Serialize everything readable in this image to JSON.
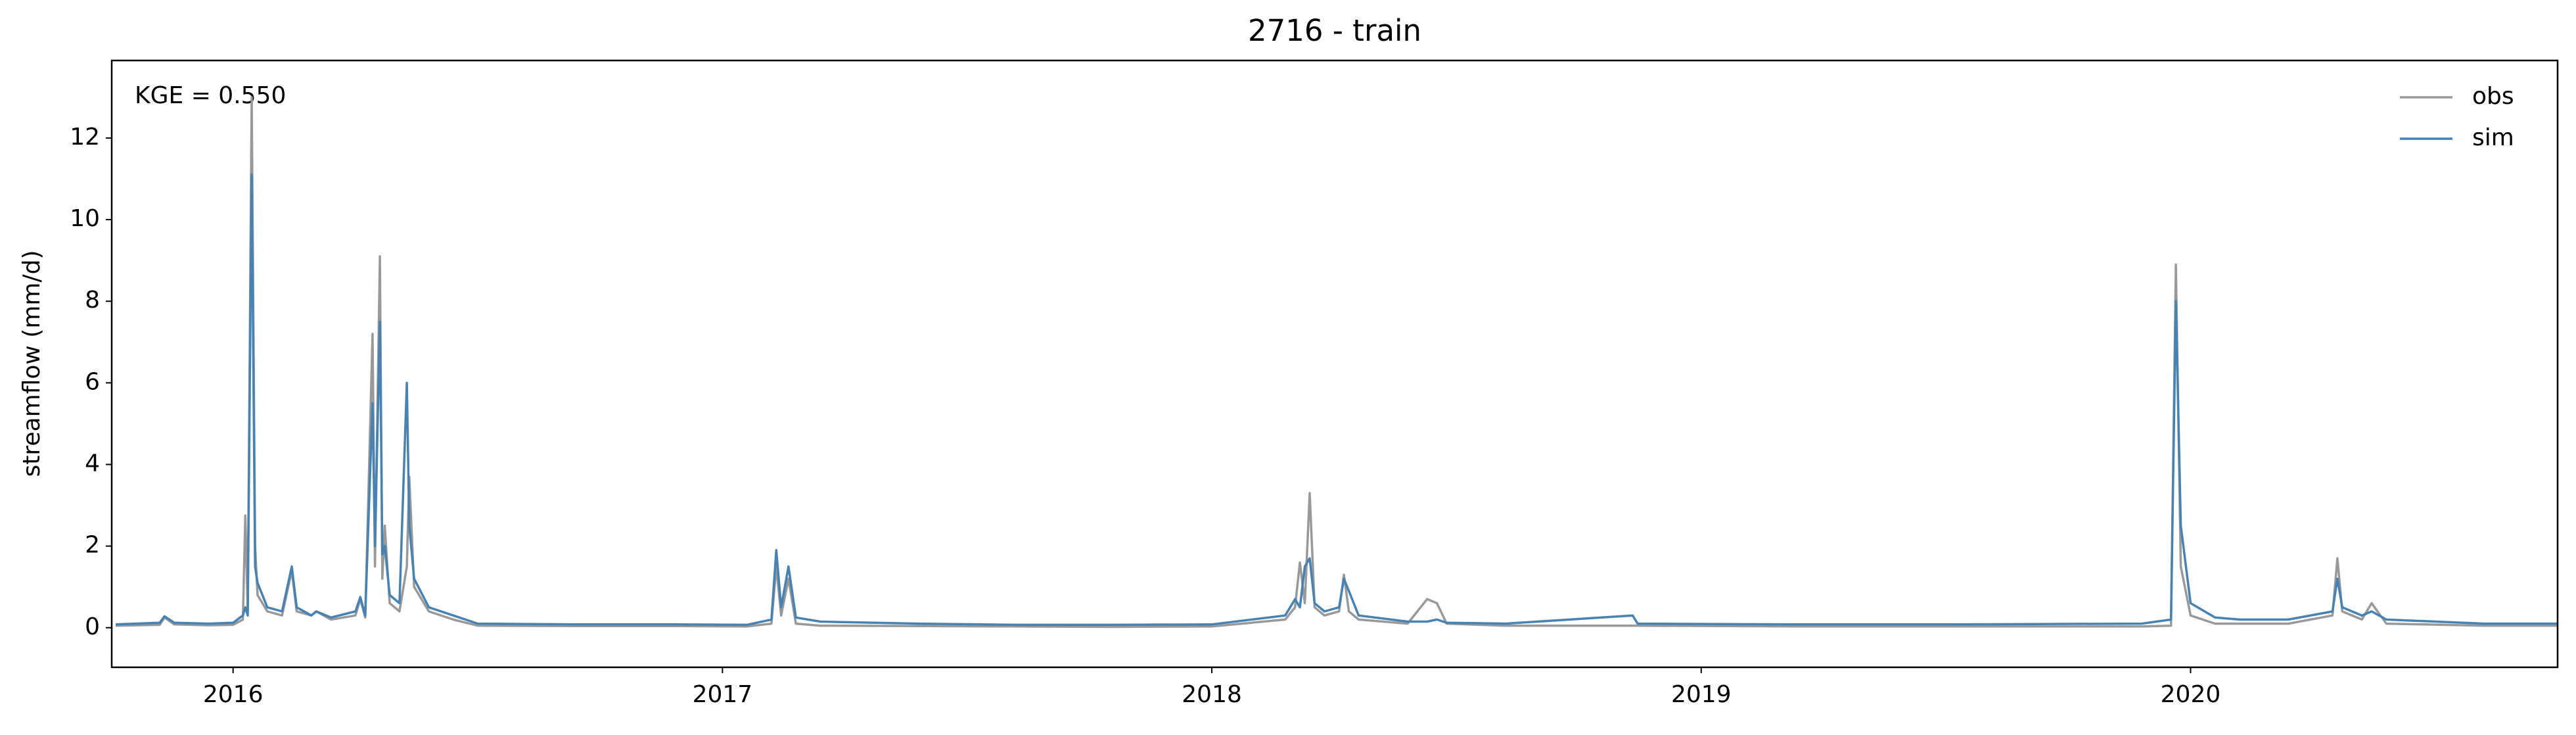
{
  "chart_data": {
    "type": "line",
    "title": "2716 - train",
    "ylabel": "streamflow (mm/d)",
    "annotation": "KGE = 0.550",
    "legend": "upper right",
    "grid": false,
    "x": [
      2015.76,
      2015.85,
      2015.86,
      2015.88,
      2015.95,
      2016.0,
      2016.02,
      2016.025,
      2016.03,
      2016.038,
      2016.045,
      2016.05,
      2016.07,
      2016.1,
      2016.12,
      2016.13,
      2016.16,
      2016.17,
      2016.2,
      2016.25,
      2016.26,
      2016.27,
      2016.285,
      2016.29,
      2016.3,
      2016.305,
      2016.31,
      2016.32,
      2016.34,
      2016.355,
      2016.36,
      2016.37,
      2016.4,
      2016.45,
      2016.5,
      2016.7,
      2016.9,
      2017.05,
      2017.1,
      2017.11,
      2017.12,
      2017.135,
      2017.15,
      2017.2,
      2017.4,
      2017.6,
      2017.8,
      2018.0,
      2018.15,
      2018.17,
      2018.18,
      2018.19,
      2018.2,
      2018.21,
      2018.23,
      2018.26,
      2018.27,
      2018.28,
      2018.3,
      2018.4,
      2018.44,
      2018.46,
      2018.48,
      2018.6,
      2018.86,
      2018.87,
      2019.2,
      2019.5,
      2019.9,
      2019.96,
      2019.97,
      2019.98,
      2020.0,
      2020.05,
      2020.1,
      2020.2,
      2020.29,
      2020.3,
      2020.31,
      2020.35,
      2020.37,
      2020.4,
      2020.6,
      2020.75
    ],
    "series": [
      {
        "name": "obs",
        "color": "#999999",
        "values": [
          0.05,
          0.07,
          0.25,
          0.08,
          0.06,
          0.07,
          0.2,
          2.75,
          0.4,
          13.0,
          2.0,
          0.8,
          0.4,
          0.3,
          1.4,
          0.4,
          0.3,
          0.4,
          0.2,
          0.3,
          0.7,
          0.25,
          7.2,
          1.5,
          9.1,
          1.2,
          2.5,
          0.6,
          0.4,
          1.5,
          3.7,
          1.0,
          0.4,
          0.2,
          0.05,
          0.04,
          0.04,
          0.03,
          0.1,
          1.5,
          0.3,
          1.2,
          0.1,
          0.05,
          0.04,
          0.03,
          0.02,
          0.03,
          0.2,
          0.5,
          1.6,
          0.6,
          3.3,
          0.5,
          0.3,
          0.4,
          1.3,
          0.4,
          0.2,
          0.1,
          0.7,
          0.6,
          0.1,
          0.05,
          0.05,
          0.05,
          0.03,
          0.03,
          0.03,
          0.05,
          8.9,
          1.5,
          0.3,
          0.1,
          0.1,
          0.1,
          0.3,
          1.7,
          0.4,
          0.2,
          0.6,
          0.1,
          0.05,
          0.05
        ]
      },
      {
        "name": "sim",
        "color": "#4682b4",
        "values": [
          0.08,
          0.12,
          0.28,
          0.12,
          0.1,
          0.12,
          0.3,
          0.5,
          0.3,
          11.1,
          1.5,
          1.1,
          0.5,
          0.4,
          1.5,
          0.5,
          0.3,
          0.4,
          0.25,
          0.4,
          0.75,
          0.3,
          5.5,
          2.0,
          7.5,
          1.8,
          2.0,
          0.8,
          0.6,
          6.0,
          2.5,
          1.2,
          0.5,
          0.3,
          0.1,
          0.08,
          0.08,
          0.07,
          0.2,
          1.9,
          0.5,
          1.5,
          0.25,
          0.15,
          0.1,
          0.07,
          0.07,
          0.08,
          0.3,
          0.7,
          0.5,
          1.5,
          1.7,
          0.6,
          0.4,
          0.5,
          1.2,
          0.9,
          0.3,
          0.15,
          0.15,
          0.2,
          0.12,
          0.1,
          0.3,
          0.1,
          0.08,
          0.08,
          0.1,
          0.2,
          8.0,
          2.5,
          0.6,
          0.25,
          0.2,
          0.2,
          0.4,
          1.2,
          0.5,
          0.3,
          0.4,
          0.2,
          0.1,
          0.1
        ]
      }
    ],
    "xlim": [
      2015.752,
      2020.75
    ],
    "xticks": [
      2016,
      2017,
      2018,
      2019,
      2020
    ],
    "ylim": [
      -0.97,
      13.9
    ],
    "yticks": [
      0,
      2,
      4,
      6,
      8,
      10,
      12
    ]
  }
}
